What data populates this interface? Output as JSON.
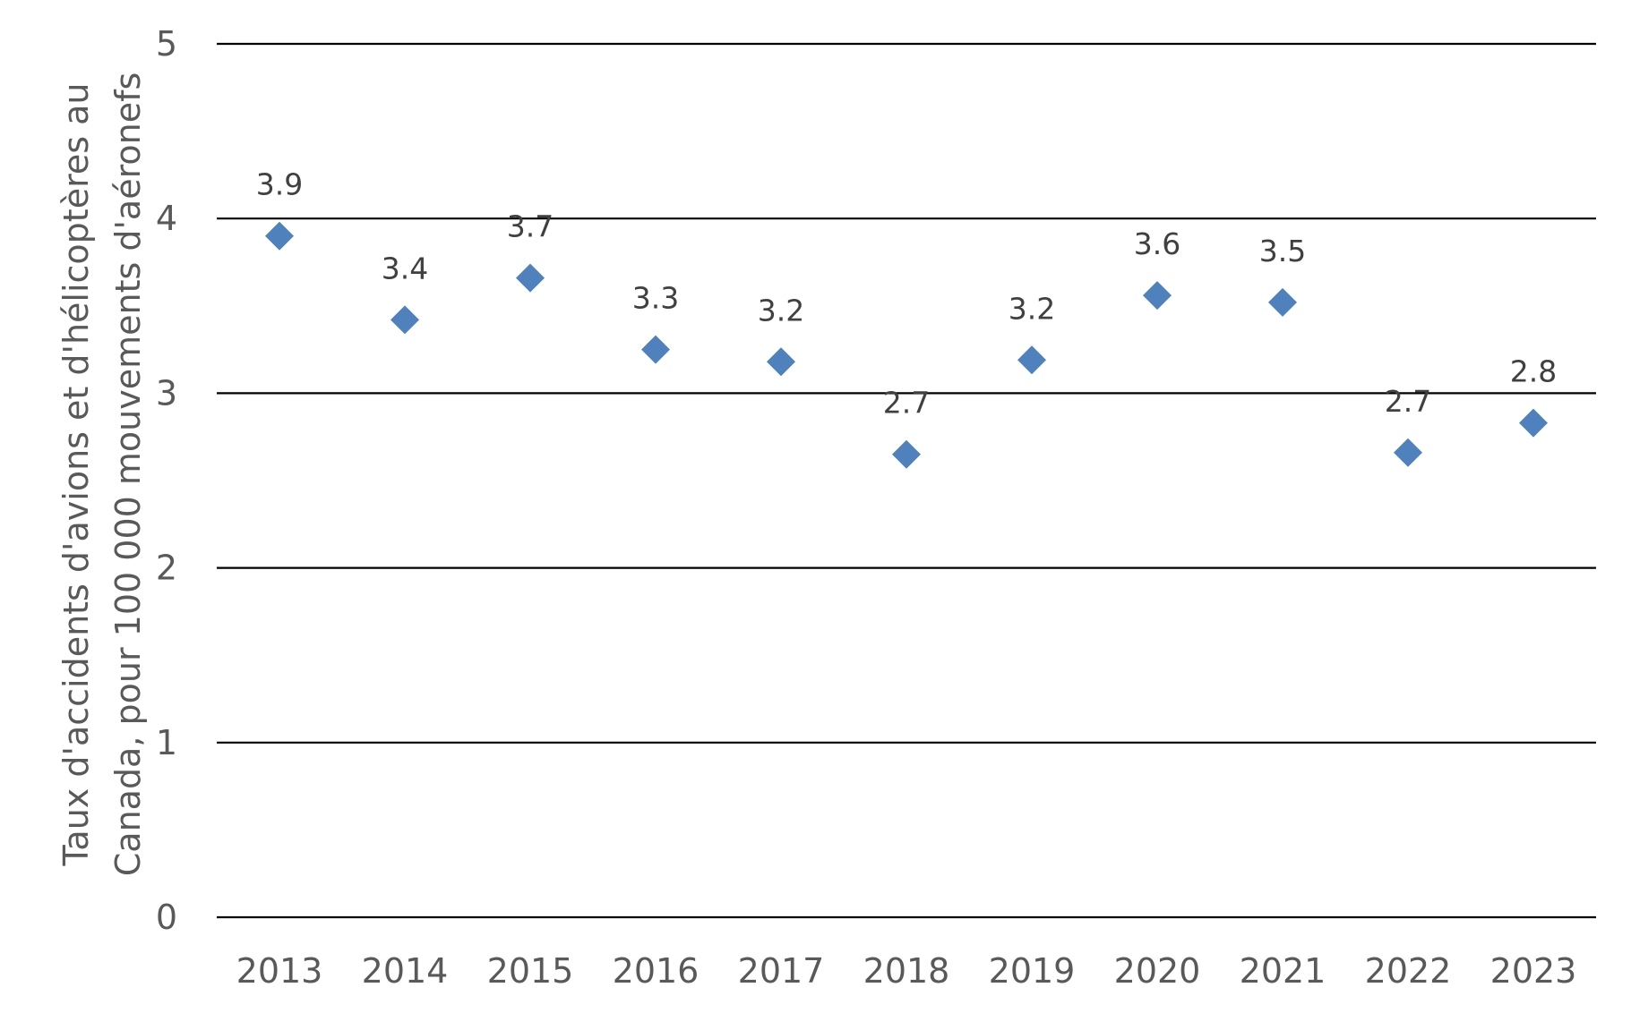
{
  "chart_data": {
    "type": "scatter",
    "title": "",
    "xlabel": "",
    "ylabel_lines": [
      "Taux d'accidents d'avions et d'hélicoptères au",
      "Canada, pour 100 000 mouvements d'aéronefs"
    ],
    "categories": [
      "2013",
      "2014",
      "2015",
      "2016",
      "2017",
      "2018",
      "2019",
      "2020",
      "2021",
      "2022",
      "2023"
    ],
    "values": [
      3.9,
      3.42,
      3.66,
      3.25,
      3.18,
      2.65,
      3.19,
      3.56,
      3.52,
      2.66,
      2.83
    ],
    "data_labels": [
      "3.9",
      "3.4",
      "3.7",
      "3.3",
      "3.2",
      "2.7",
      "3.2",
      "3.6",
      "3.5",
      "2.7",
      "2.8"
    ],
    "ylim": [
      0,
      5
    ],
    "yticks": [
      "0",
      "1",
      "2",
      "3",
      "4",
      "5"
    ],
    "grid": true,
    "legend": "none",
    "marker": "diamond",
    "marker_color": "#4F81BD"
  }
}
